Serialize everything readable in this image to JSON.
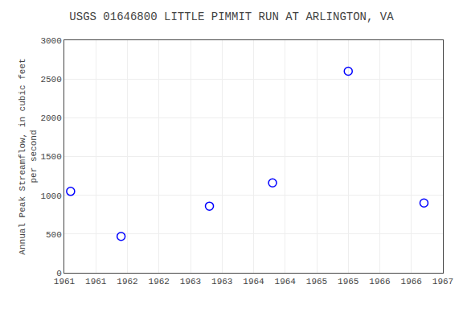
{
  "chart_data": {
    "type": "scatter",
    "title": "USGS 01646800 LITTLE PIMMIT RUN AT ARLINGTON, VA",
    "ylabel": "Annual Peak Streamflow, in cubic feet\nper second",
    "x": [
      1961.1,
      1961.9,
      1963.3,
      1964.3,
      1965.5,
      1966.7
    ],
    "values": [
      1050,
      470,
      860,
      1160,
      2600,
      900
    ],
    "color": "blue",
    "marker": "circle-open",
    "xlim": [
      1961,
      1967
    ],
    "xticks": [
      1961,
      {
        "value": 1961.5,
        "label": "1961"
      },
      1962,
      {
        "value": 1962.5,
        "label": "1962"
      },
      1963,
      {
        "value": 1963.5,
        "label": "1963"
      },
      1964,
      {
        "value": 1964.5,
        "label": "1964"
      },
      1965,
      {
        "value": 1965.5,
        "label": "1965"
      },
      1966,
      {
        "value": 1966.5,
        "label": "1966"
      },
      1967
    ],
    "ylim": [
      0,
      3000
    ],
    "yticks": [
      0,
      500,
      1000,
      1500,
      2000,
      2500,
      3000
    ],
    "grid": true
  }
}
